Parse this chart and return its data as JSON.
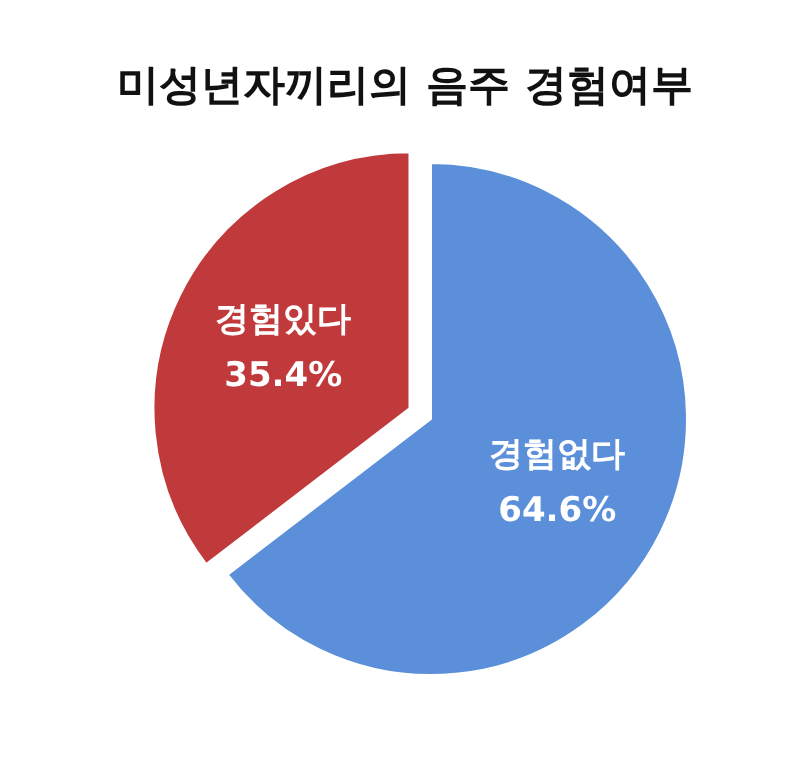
{
  "chart_data": {
    "type": "pie",
    "title": "미성년자끼리의 음주 경험여부",
    "categories": [
      "경험없다",
      "경험있다"
    ],
    "values": [
      64.6,
      35.4
    ],
    "colors": [
      "#5b8fd9",
      "#c0393b"
    ],
    "value_labels": [
      "64.6%",
      "35.4%"
    ]
  }
}
